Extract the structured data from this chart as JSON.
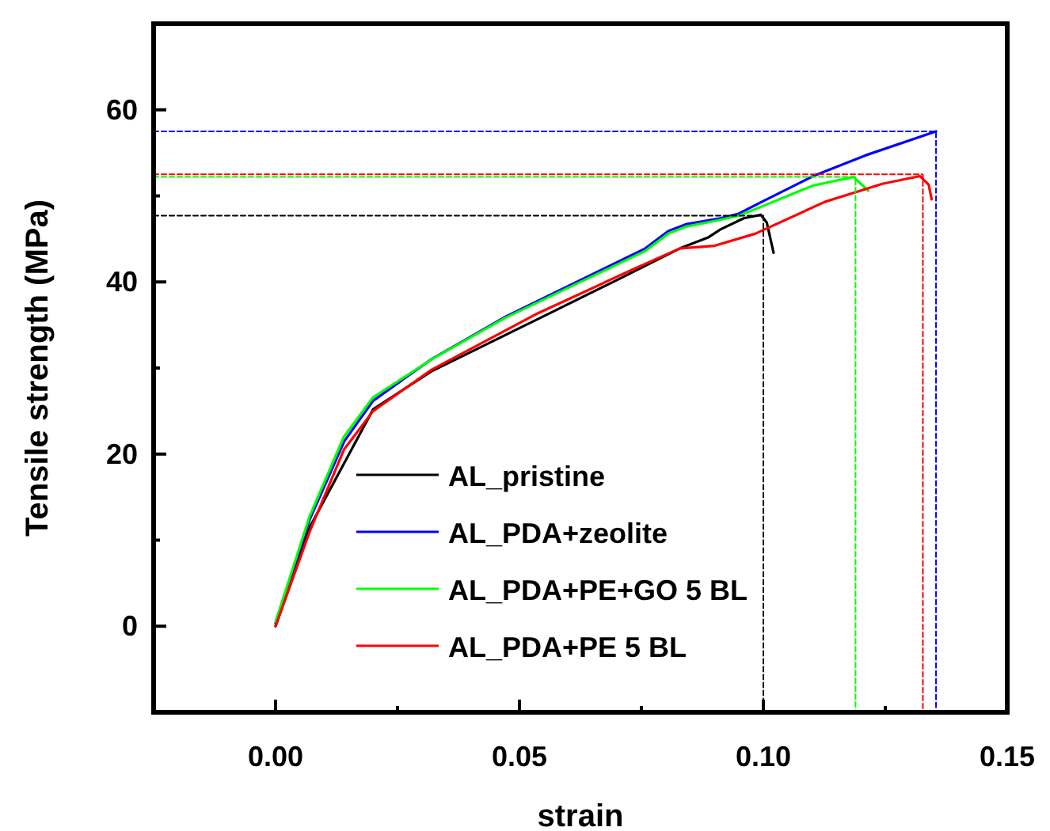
{
  "chart_data": {
    "type": "line",
    "xlabel": "strain",
    "ylabel": "Tensile strength (MPa)",
    "xlim": [
      -0.025,
      0.15
    ],
    "ylim": [
      -10,
      70
    ],
    "xticks": [
      {
        "value": 0,
        "label": "0.00"
      },
      {
        "value": 0.025,
        "label": null
      },
      {
        "value": 0.05,
        "label": "0.05"
      },
      {
        "value": 0.075,
        "label": null
      },
      {
        "value": 0.1,
        "label": "0.10"
      },
      {
        "value": 0.125,
        "label": null
      },
      {
        "value": 0.15,
        "label": "0.15"
      }
    ],
    "yticks": [
      0,
      {
        "value": 10,
        "label": null
      },
      20,
      {
        "value": 30,
        "label": null
      },
      40,
      {
        "value": 50,
        "label": null
      },
      60
    ],
    "grid": false,
    "legend": "bottom left",
    "line_style": "solid",
    "marker": "none",
    "series": [
      {
        "name": "AL_pristine",
        "color": "#000000",
        "x": [
          0,
          0.007,
          0.02,
          0.0319,
          0.0556,
          0.0699,
          0.0829,
          0.0888,
          0.0912,
          0.096,
          0.0995,
          0.1007,
          0.1021
        ],
        "values": [
          0,
          11.5,
          25.2,
          29.6,
          36.2,
          40.2,
          43.9,
          45.2,
          46.1,
          47.4,
          47.8,
          46.9,
          43.4
        ]
      },
      {
        "name": "AL_PDA+zeolite",
        "color": "#0000ff",
        "x": [
          0,
          0.007,
          0.0141,
          0.02,
          0.0319,
          0.0473,
          0.0758,
          0.0805,
          0.0841,
          0.0912,
          0.0948,
          0.1007,
          0.1102,
          0.1209,
          0.1354
        ],
        "values": [
          0.3,
          12.4,
          21.5,
          26.2,
          31,
          36,
          43.9,
          45.9,
          46.7,
          47.4,
          47.9,
          49.6,
          52.3,
          54.7,
          57.5
        ]
      },
      {
        "name": "AL_PDA+PE+GO 5 BL",
        "color": "#00ff00",
        "x": [
          0,
          0.007,
          0.014,
          0.02,
          0.032,
          0.047,
          0.0758,
          0.0805,
          0.084,
          0.091,
          0.095,
          0.1007,
          0.1102,
          0.1185,
          0.1215
        ],
        "values": [
          0.5,
          12.8,
          22,
          26.6,
          31,
          35.8,
          43.6,
          45.6,
          46.4,
          47.2,
          47.7,
          49,
          51.2,
          52.2,
          50.6
        ]
      },
      {
        "name": "AL_PDA+PE 5 BL",
        "color": "#ff0000",
        "x": [
          0,
          0.007,
          0.014,
          0.02,
          0.032,
          0.0532,
          0.0734,
          0.0829,
          0.09,
          0.0983,
          0.1126,
          0.1244,
          0.1321,
          0.1339,
          0.1345
        ],
        "values": [
          0,
          11,
          20.5,
          25,
          29.8,
          36.2,
          41.5,
          43.9,
          44.2,
          45.6,
          49.3,
          51.4,
          52.3,
          51.3,
          49.6
        ]
      },
      {
        "color": "#000000",
        "line_style": "dashed",
        "x": [
          -0.025,
          0.1,
          0.1
        ],
        "values": [
          47.7,
          47.7,
          -10
        ]
      },
      {
        "color": "#0000ff",
        "line_style": "dashed",
        "x": [
          -0.025,
          0.1354,
          0.1354
        ],
        "values": [
          57.5,
          57.5,
          -10
        ]
      },
      {
        "color": "#00ff00",
        "line_style": "dashed",
        "x": [
          -0.025,
          0.1189,
          0.1189
        ],
        "values": [
          52.2,
          52.2,
          -10
        ]
      },
      {
        "color": "#ff0000",
        "line_style": "dashed",
        "x": [
          -0.025,
          0.1327,
          0.1327
        ],
        "values": [
          52.5,
          52.5,
          -10
        ]
      }
    ]
  }
}
